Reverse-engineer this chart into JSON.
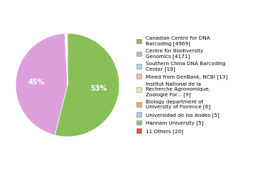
{
  "slices": [
    {
      "label": "Canadian Centre for DNA\nBarcoding [4969]",
      "value": 4969,
      "color": "#88c057",
      "pct": "53%"
    },
    {
      "label": "Centre for Biodiversity\nGenomics [4171]",
      "value": 4171,
      "color": "#dda0dd",
      "pct": "45%"
    },
    {
      "label": "Southern China DNA Barcoding\nCenter [19]",
      "value": 19,
      "color": "#add8e6"
    },
    {
      "label": "Mined from GenBank, NCBI [13]",
      "value": 13,
      "color": "#f4b8b8"
    },
    {
      "label": "Institut National de la\nRecherche Agronomique,\nZoologie For... [9]",
      "value": 9,
      "color": "#e8e8b0"
    },
    {
      "label": "Biology department of\nUniversity of Florence [6]",
      "value": 6,
      "color": "#f4a460"
    },
    {
      "label": "Universidad de los Andes [5]",
      "value": 5,
      "color": "#b0c8e8"
    },
    {
      "label": "Hannam University [5]",
      "value": 5,
      "color": "#90c090"
    },
    {
      "label": "11 Others [20]",
      "value": 20,
      "color": "#e05050"
    }
  ],
  "show_pct_labels": [
    "Canadian Centre for DNA\nBarcoding [4969]",
    "Centre for Biodiversity\nGenomics [4171]"
  ],
  "pct_map": {
    "Canadian Centre for DNA\nBarcoding [4969]": "53%",
    "Centre for Biodiversity\nGenomics [4171]": "45%"
  },
  "figsize": [
    3.8,
    2.4
  ],
  "dpi": 100
}
